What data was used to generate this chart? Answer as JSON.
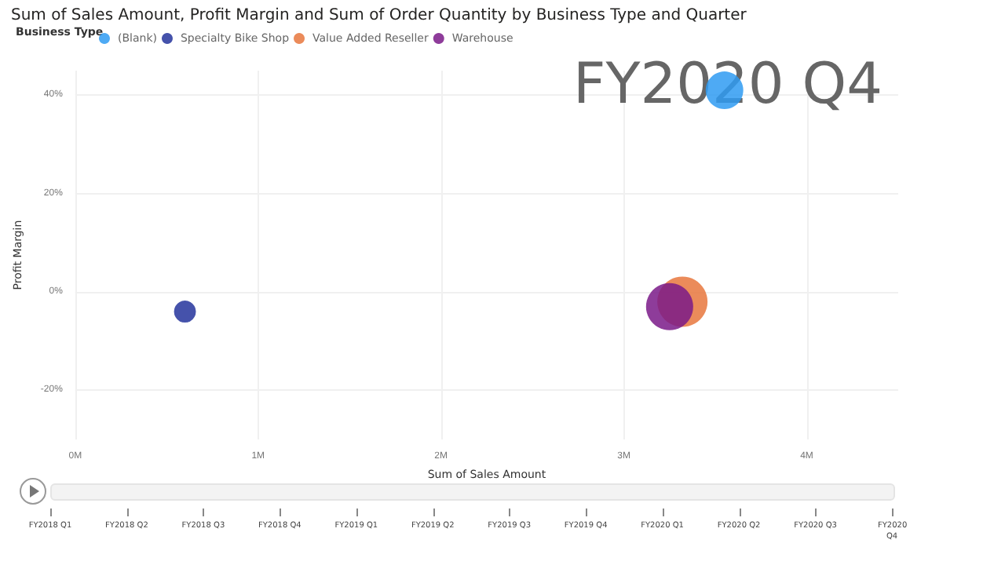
{
  "chart_data": {
    "type": "bubble",
    "title": "Sum of Sales Amount, Profit Margin and Sum of Order Quantity by Business Type and Quarter",
    "xlabel": "Sum of Sales Amount",
    "ylabel": "Profit Margin",
    "legend_title": "Business Type",
    "legend": "top left",
    "grid": true,
    "marker": "circle",
    "xlim": [
      0,
      4.5
    ],
    "xticks": [
      {
        "value": 0,
        "label": "0M"
      },
      {
        "value": 1,
        "label": "1M"
      },
      {
        "value": 2,
        "label": "2M"
      },
      {
        "value": 3,
        "label": "3M"
      },
      {
        "value": 4,
        "label": "4M"
      }
    ],
    "ylim": [
      -30,
      45
    ],
    "yticks": [
      {
        "value": -20,
        "label": "-20%"
      },
      {
        "value": 0,
        "label": "0%"
      },
      {
        "value": 20,
        "label": "20%"
      },
      {
        "value": 40,
        "label": "40%"
      }
    ],
    "series": [
      {
        "name": "(Blank)",
        "color": "#2f9bf2",
        "x": [
          3.55
        ],
        "values": [
          41
        ],
        "sizes": [
          0.56
        ]
      },
      {
        "name": "Specialty Bike Shop",
        "color": "#25349c",
        "x": [
          0.6
        ],
        "values": [
          -4
        ],
        "sizes": [
          0.19
        ]
      },
      {
        "name": "Value Added Reseller",
        "color": "#e8773d",
        "x": [
          3.32
        ],
        "values": [
          -2
        ],
        "sizes": [
          1
        ]
      },
      {
        "name": "Warehouse",
        "color": "#7a1a88",
        "x": [
          3.25
        ],
        "values": [
          -3
        ],
        "sizes": [
          0.88
        ]
      }
    ],
    "annotations": [
      "FY2020 Q4",
      "FY2018 Q1",
      "FY2018 Q2",
      "FY2018 Q3",
      "FY2018 Q4",
      "FY2019 Q1",
      "FY2019 Q2",
      "FY2019 Q3",
      "FY2019 Q4",
      "FY2020 Q1",
      "FY2020 Q2",
      "FY2020 Q3",
      "FY2020 Q4"
    ]
  }
}
